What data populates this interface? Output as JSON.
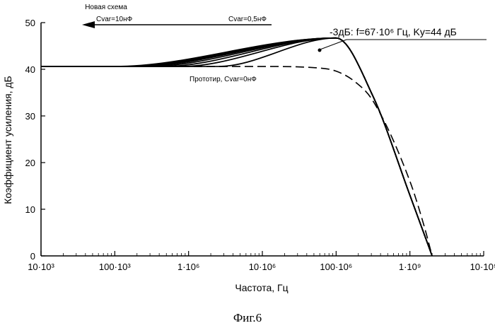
{
  "chart_data": {
    "type": "line",
    "xlabel": "Частота, Гц",
    "ylabel": "Коэффициент усиления, дБ",
    "x_scale": "log",
    "xlim": [
      10000,
      10000000000
    ],
    "ylim": [
      0,
      50
    ],
    "x_ticks": [
      {
        "value": 10000,
        "label": "10·10³"
      },
      {
        "value": 100000,
        "label": "100·10³"
      },
      {
        "value": 1000000,
        "label": "1·10⁶"
      },
      {
        "value": 10000000,
        "label": "10·10⁶"
      },
      {
        "value": 100000000,
        "label": "100·10⁶"
      },
      {
        "value": 1000000000,
        "label": "1·10⁹"
      },
      {
        "value": 10000000000,
        "label": "10·10⁹"
      }
    ],
    "y_ticks": [
      0,
      10,
      20,
      30,
      40,
      50
    ],
    "grid": false,
    "series": [
      {
        "style": "solid",
        "x": [
          10000,
          31623,
          100000,
          100000000,
          316228000,
          1000000000,
          2000000000
        ],
        "y": [
          40.6,
          40.6,
          40.6,
          46.7,
          34.2,
          13.0,
          0
        ]
      },
      {
        "style": "solid",
        "x": [
          10000,
          40000,
          125893,
          100000000,
          316228000,
          1000000000,
          2000000000
        ],
        "y": [
          40.6,
          40.6,
          40.6,
          46.7,
          34.2,
          13.0,
          0
        ]
      },
      {
        "style": "solid",
        "x": [
          10000,
          50000,
          158489,
          100000000,
          316228000,
          1000000000,
          2000000000
        ],
        "y": [
          40.6,
          40.6,
          40.6,
          46.7,
          34.2,
          13.0,
          0
        ]
      },
      {
        "style": "solid",
        "x": [
          10000,
          70000,
          199526,
          100000000,
          316228000,
          1000000000,
          2000000000
        ],
        "y": [
          40.6,
          40.6,
          40.6,
          46.7,
          34.2,
          13.0,
          0
        ]
      },
      {
        "style": "solid",
        "x": [
          10000,
          100000,
          281838,
          100000000,
          316228000,
          1000000000,
          2000000000
        ],
        "y": [
          40.6,
          40.6,
          40.6,
          46.7,
          34.2,
          13.0,
          0
        ]
      },
      {
        "style": "solid",
        "x": [
          10000,
          150000,
          446684,
          100000000,
          316228000,
          1000000000,
          2000000000
        ],
        "y": [
          40.6,
          40.6,
          40.6,
          46.7,
          34.2,
          13.0,
          0
        ]
      },
      {
        "style": "solid",
        "x": [
          10000,
          250000,
          794328,
          100000000,
          316228000,
          1000000000,
          2000000000
        ],
        "y": [
          40.6,
          40.6,
          40.6,
          46.7,
          34.2,
          13.0,
          0
        ]
      },
      {
        "style": "solid",
        "x": [
          10000,
          700000,
          2511886,
          100000000,
          316228000,
          1000000000,
          2000000000
        ],
        "y": [
          40.6,
          40.6,
          40.6,
          46.7,
          34.2,
          13.0,
          0
        ]
      },
      {
        "style": "dashed",
        "x": [
          10000,
          1000000,
          10000000,
          56234000,
          100000000,
          177828000,
          316228000,
          1000000000,
          1584893000,
          2000000000
        ],
        "y": [
          40.6,
          40.6,
          40.6,
          40.3,
          39.6,
          37.4,
          33.2,
          16.0,
          6.0,
          0
        ]
      }
    ],
    "annotations": [
      {
        "text": "Новая схема"
      },
      {
        "text": "Cvar=10нФ"
      },
      {
        "text": "Cvar=0,5нФ"
      },
      {
        "text": "Прототир, Cvar=0нФ"
      },
      {
        "text": "-3дБ: f=67·10⁶ Гц, Kу=44 дБ"
      }
    ]
  },
  "caption": "Фиг.6"
}
